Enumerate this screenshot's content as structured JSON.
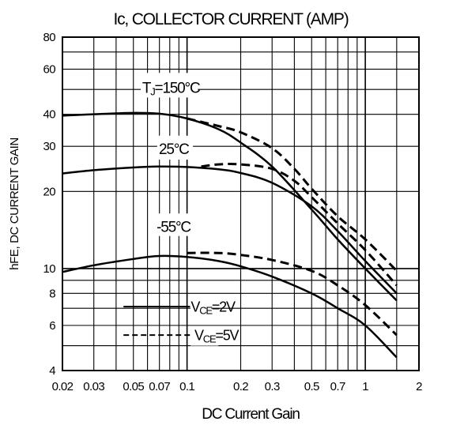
{
  "chart_data": {
    "type": "line",
    "title": "Ic, COLLECTOR CURRENT (AMP)",
    "xlabel": "DC Current Gain",
    "ylabel": "hFE, DC CURRENT GAIN",
    "x_scale": "log",
    "y_scale": "log",
    "xlim": [
      0.02,
      2
    ],
    "ylim": [
      4,
      80
    ],
    "x_ticks": [
      "0.02",
      "0.03",
      "0.05",
      "0.07",
      "0.1",
      "0.2",
      "0.3",
      "0.5",
      "0.7",
      "1",
      "2"
    ],
    "y_ticks": [
      "4",
      "6",
      "8",
      "10",
      "20",
      "30",
      "40",
      "60",
      "80"
    ],
    "grid": true,
    "annotations": [
      {
        "id": "tj",
        "prefix": "T",
        "sub": "J",
        "suffix": "=150°C"
      },
      {
        "id": "t25",
        "text": "25°C"
      },
      {
        "id": "tm55",
        "text": "-55°C"
      }
    ],
    "legend": {
      "placement": "lower-center",
      "entries": [
        {
          "prefix": "V",
          "sub": "CE",
          "suffix": "=2V",
          "style": "solid"
        },
        {
          "prefix": "V",
          "sub": "CE",
          "suffix": "=5V",
          "style": "dashed"
        }
      ]
    },
    "series": [
      {
        "temperature": "150°C",
        "vce": "2V",
        "style": "solid",
        "x": [
          0.02,
          0.03,
          0.05,
          0.07,
          0.1,
          0.15,
          0.2,
          0.3,
          0.5,
          0.7,
          1.0,
          1.5
        ],
        "y": [
          39.5,
          40,
          40.5,
          40.2,
          38.5,
          35,
          31,
          25,
          17,
          13,
          10,
          7.5
        ]
      },
      {
        "temperature": "150°C",
        "vce": "5V",
        "style": "dashed",
        "x": [
          0.1,
          0.15,
          0.2,
          0.3,
          0.4,
          0.5,
          0.7,
          1.0,
          1.5
        ],
        "y": [
          38.5,
          36,
          34,
          29.5,
          24.5,
          20.5,
          16,
          13,
          9.8
        ]
      },
      {
        "temperature": "25°C",
        "vce": "2V",
        "style": "solid",
        "x": [
          0.02,
          0.03,
          0.05,
          0.07,
          0.1,
          0.15,
          0.2,
          0.3,
          0.5,
          0.7,
          1.0,
          1.5
        ],
        "y": [
          23.5,
          24.2,
          24.8,
          25,
          24.9,
          24.4,
          23.6,
          21.6,
          17.5,
          14,
          10.7,
          8
        ]
      },
      {
        "temperature": "25°C",
        "vce": "5V",
        "style": "dashed",
        "x": [
          0.12,
          0.15,
          0.2,
          0.3,
          0.4,
          0.5,
          0.7,
          1.0,
          1.5
        ],
        "y": [
          25,
          25.5,
          25.5,
          24.5,
          22,
          19,
          15,
          11.8,
          8.6
        ]
      },
      {
        "temperature": "-55°C",
        "vce": "2V",
        "style": "solid",
        "x": [
          0.02,
          0.03,
          0.05,
          0.07,
          0.1,
          0.15,
          0.2,
          0.3,
          0.5,
          0.7,
          1.0,
          1.5
        ],
        "y": [
          9.7,
          10.3,
          10.9,
          11.2,
          11.1,
          10.7,
          10.2,
          9.3,
          8.0,
          7.0,
          6.0,
          4.5
        ]
      },
      {
        "temperature": "-55°C",
        "vce": "5V",
        "style": "dashed",
        "x": [
          0.1,
          0.15,
          0.2,
          0.3,
          0.5,
          0.7,
          1.0,
          1.5
        ],
        "y": [
          11.5,
          11.5,
          11.3,
          10.8,
          9.8,
          8.6,
          7.2,
          5.5
        ]
      }
    ]
  }
}
